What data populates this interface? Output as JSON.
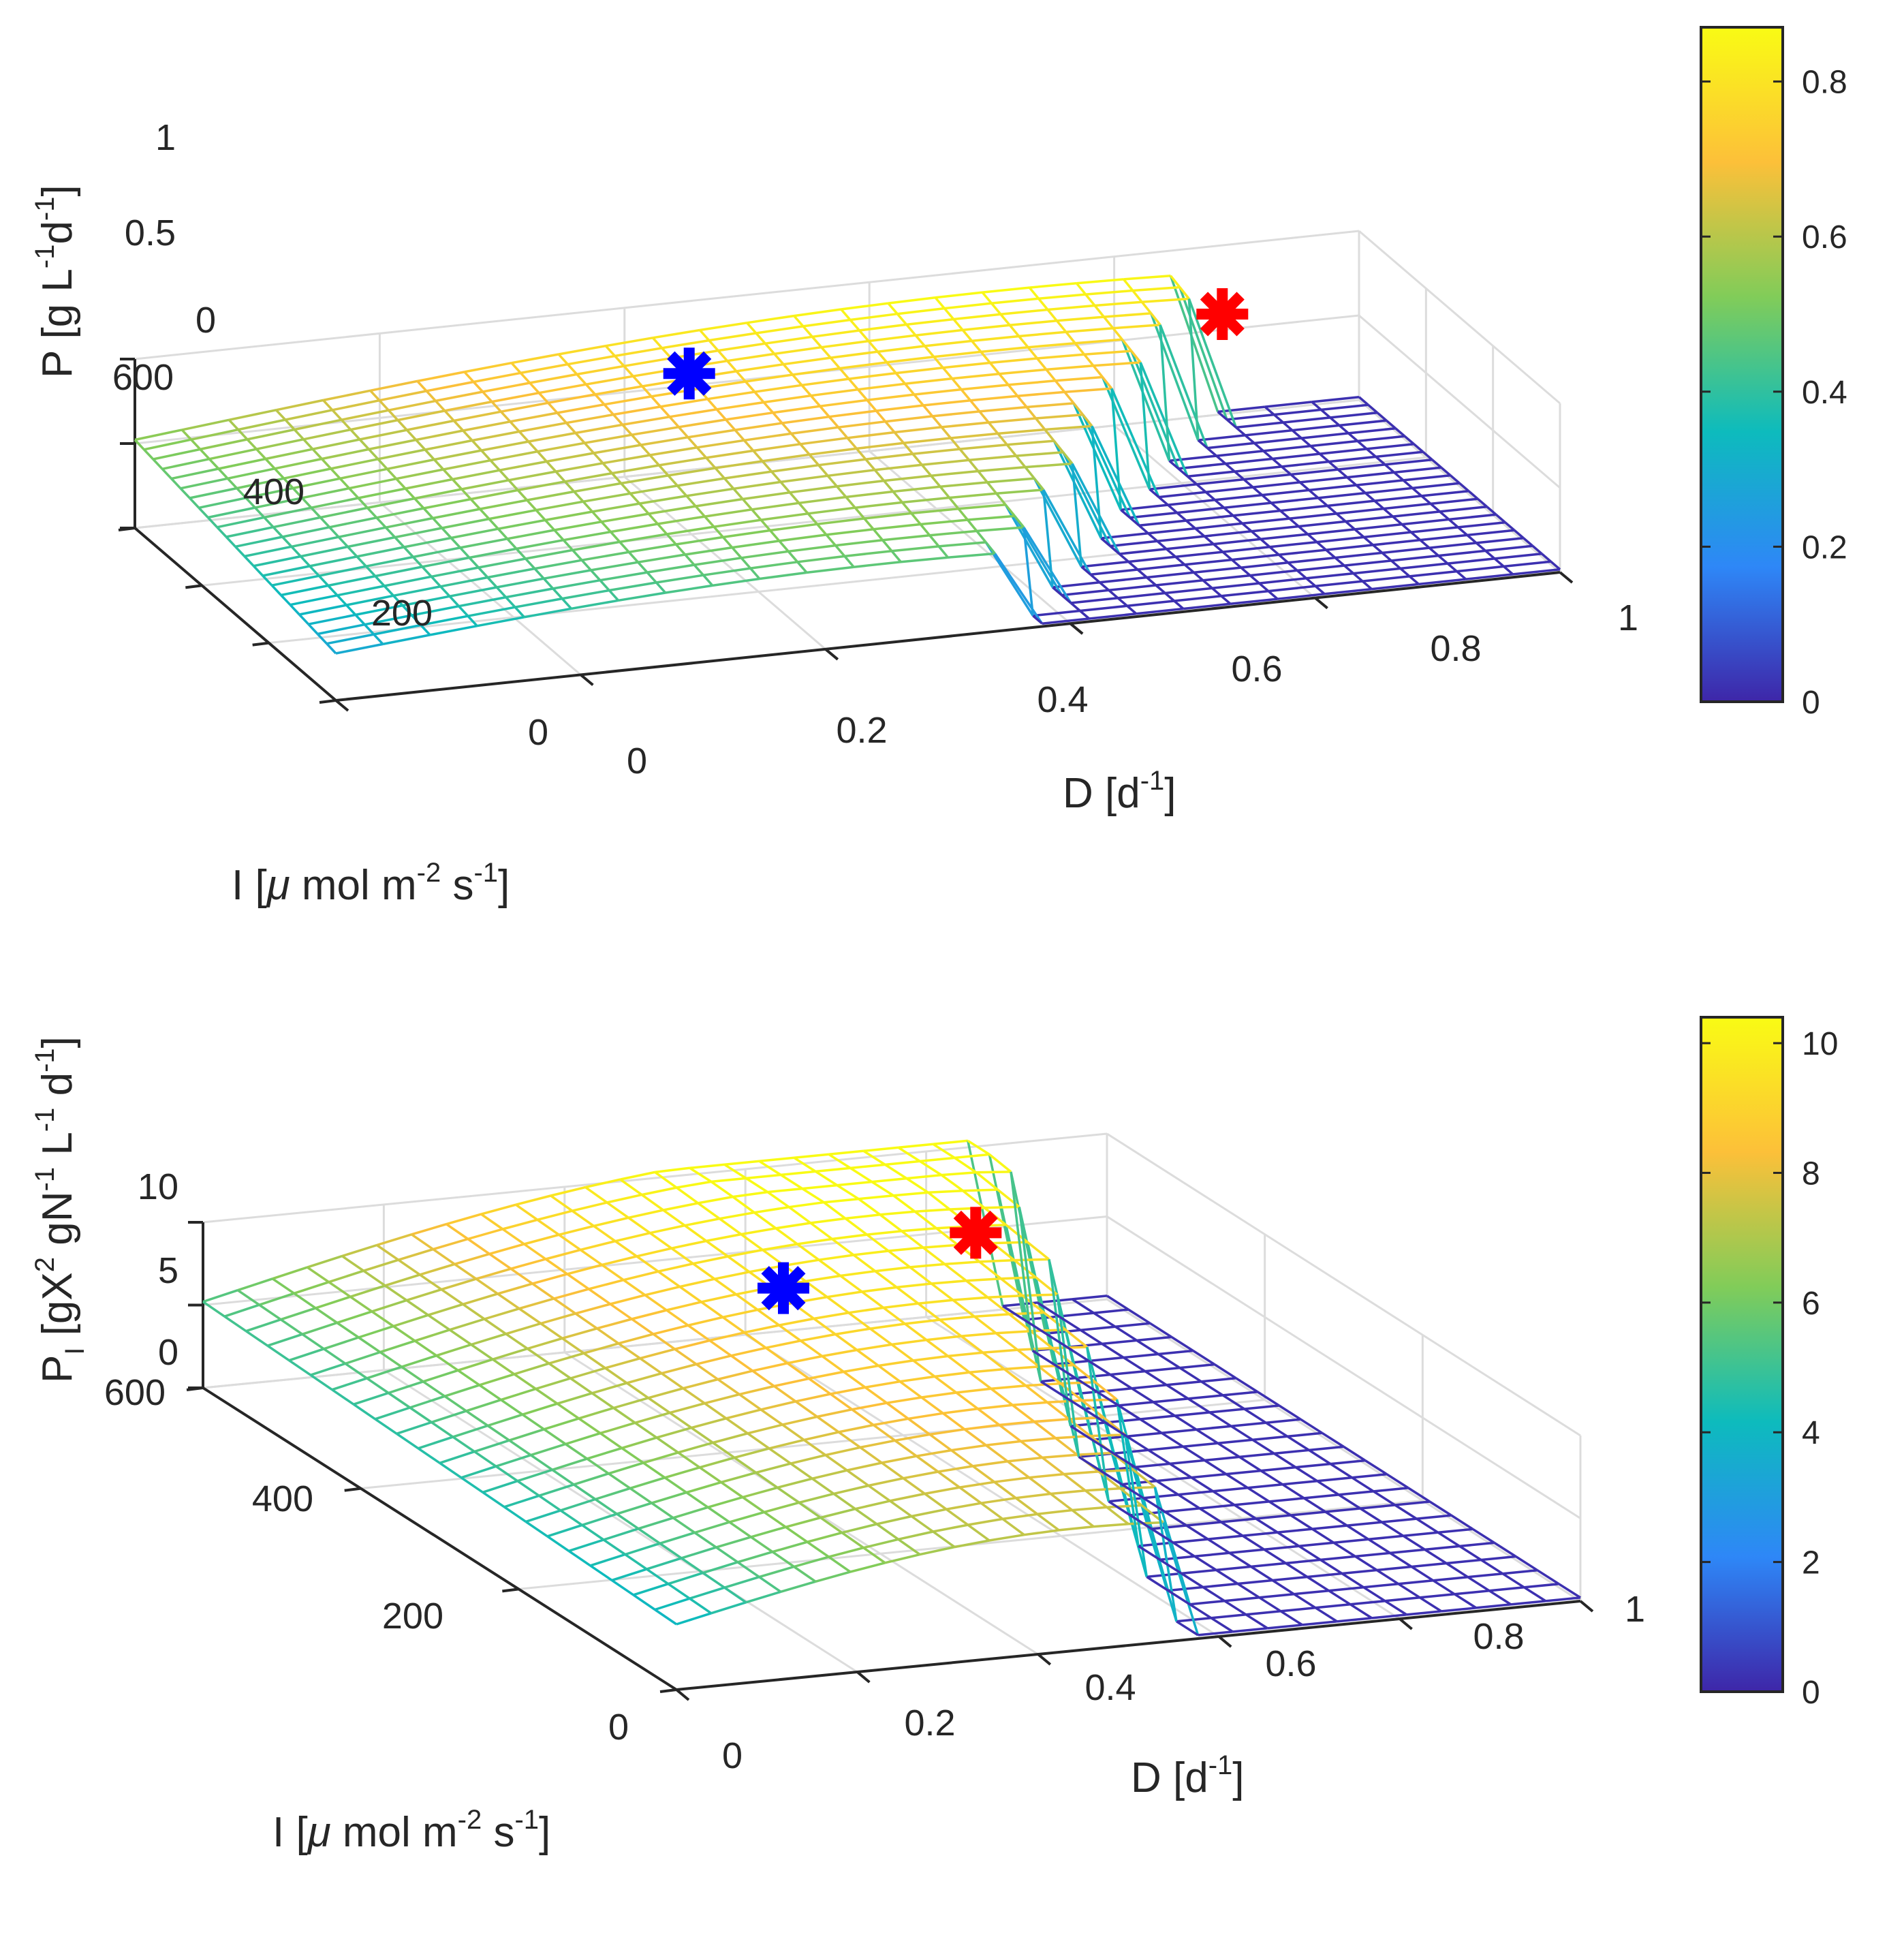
{
  "chart_data": [
    {
      "type": "surface",
      "title": "",
      "xlabel": "D [d-1]",
      "ylabel": "I [μ mol m-2 s-1]",
      "zlabel": "P [g L-1 d-1]",
      "xlim": [
        0,
        1
      ],
      "ylim": [
        0,
        600
      ],
      "zlim": [
        0,
        1
      ],
      "x_ticks": [
        "0",
        "0.2",
        "0.4",
        "0.6",
        "0.8",
        "1"
      ],
      "y_ticks": [
        "0",
        "200",
        "400",
        "600"
      ],
      "z_ticks": [
        "0",
        "0.5",
        "1"
      ],
      "colorbar": {
        "min": 0,
        "max": 0.87,
        "ticks": [
          "0",
          "0.2",
          "0.4",
          "0.6",
          "0.8"
        ]
      },
      "grid": true,
      "peak": 0.87,
      "markers": [
        {
          "name": "blue-star",
          "color": "#0000ff",
          "D": 0.42,
          "I": 480,
          "P": 0.8
        },
        {
          "name": "red-star",
          "color": "#ff0000",
          "D": 0.85,
          "I": 460,
          "P": 0.86
        }
      ]
    },
    {
      "type": "surface",
      "title": "",
      "xlabel": "D [d-1]",
      "ylabel": "I [μ mol m-2 s-1]",
      "zlabel": "PI [gX2 gN-1 L-1 d-1]",
      "xlim": [
        0,
        1
      ],
      "ylim": [
        0,
        600
      ],
      "zlim": [
        0,
        10
      ],
      "x_ticks": [
        "0",
        "0.2",
        "0.4",
        "0.6",
        "0.8",
        "1"
      ],
      "y_ticks": [
        "0",
        "200",
        "400",
        "600"
      ],
      "z_ticks": [
        "0",
        "5",
        "10"
      ],
      "colorbar": {
        "min": 0,
        "max": 10.4,
        "ticks": [
          "0",
          "2",
          "4",
          "6",
          "8",
          "10"
        ]
      },
      "grid": true,
      "peak": 10.4,
      "markers": [
        {
          "name": "blue-star",
          "color": "#0000ff",
          "D": 0.45,
          "I": 380,
          "P": 10.3
        },
        {
          "name": "red-star",
          "color": "#ff0000",
          "D": 0.75,
          "I": 480,
          "P": 9.0
        }
      ]
    }
  ]
}
